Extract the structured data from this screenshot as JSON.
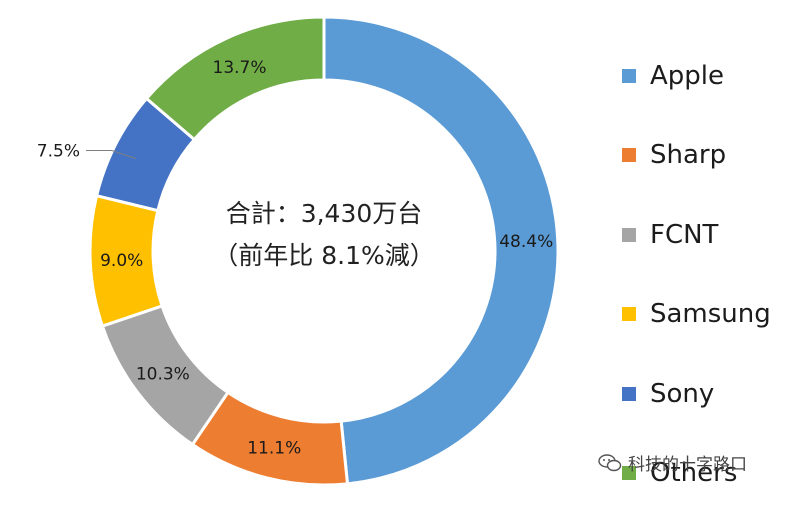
{
  "chart_data": {
    "type": "pie",
    "variant": "donut",
    "center_text": [
      "合計：3,430万台",
      "（前年比 8.1%減）"
    ],
    "labels": [
      "Apple",
      "Sharp",
      "FCNT",
      "Samsung",
      "Sony",
      "Others"
    ],
    "values": [
      48.4,
      11.1,
      10.3,
      9.0,
      7.5,
      13.7
    ],
    "value_labels": [
      "48.4%",
      "11.1%",
      "10.3%",
      "9.0%",
      "7.5%",
      "13.7%"
    ],
    "colors": [
      "#5b9bd5",
      "#ed7d31",
      "#a5a5a5",
      "#ffc000",
      "#4472c4",
      "#70ad47"
    ],
    "legend_position": "right"
  },
  "watermark": {
    "text": "科技的十字路口",
    "icon": "wechat-icon"
  }
}
